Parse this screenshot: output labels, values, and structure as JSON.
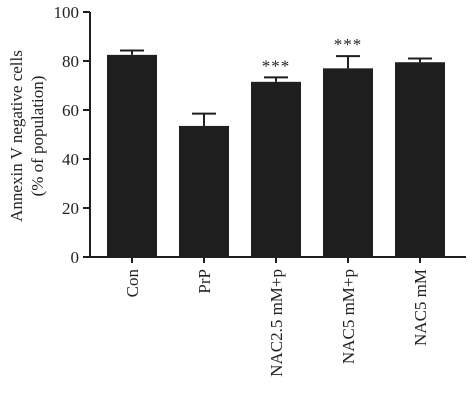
{
  "chart_data": {
    "type": "bar",
    "categories": [
      "Con",
      "PrP",
      "NAC2.5 mM+p",
      "NAC5 mM+p",
      "NAC5 mM"
    ],
    "values": [
      82.5,
      53.5,
      71.5,
      77.0,
      79.5
    ],
    "errors": [
      1.8,
      5.0,
      1.8,
      5.0,
      1.5
    ],
    "annotations": [
      "",
      "",
      "***",
      "***",
      ""
    ],
    "ylabel_line1": "Annexin V negative cells",
    "ylabel_line2": "(% of population)",
    "ylim": [
      0,
      100
    ],
    "yticks": [
      0,
      20,
      40,
      60,
      80,
      100
    ],
    "grid": false,
    "colors": {
      "bar": "#1f1f1f",
      "axis": "#1f1f1f",
      "text": "#222222"
    }
  }
}
